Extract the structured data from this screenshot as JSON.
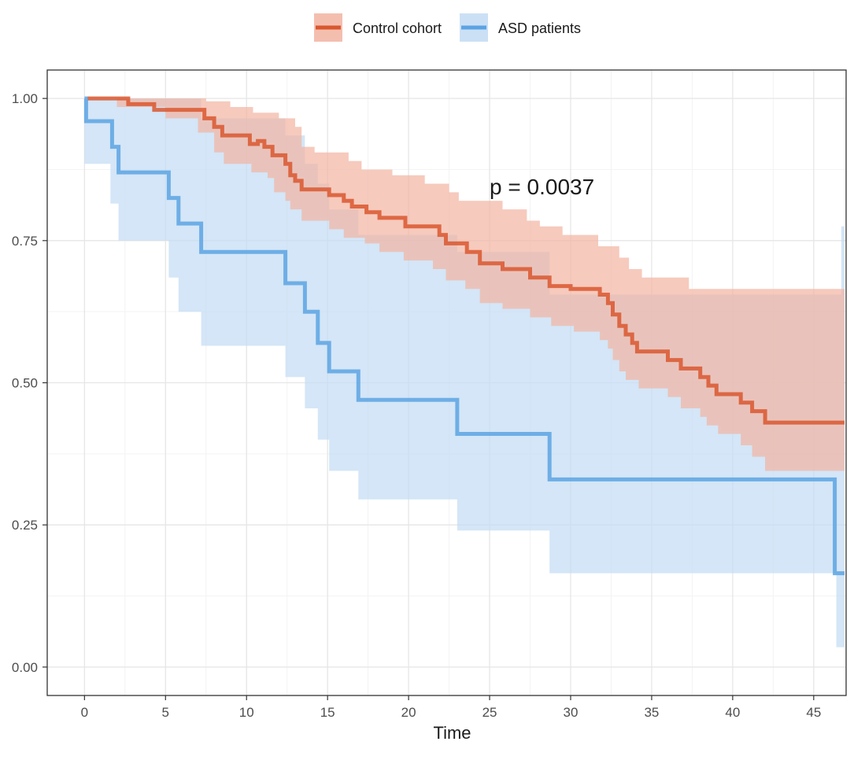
{
  "chart_data": {
    "type": "line",
    "subtype": "kaplan-meier",
    "xlabel": "Time",
    "ylabel": "",
    "xlim": [
      -2.3,
      47.0
    ],
    "ylim": [
      -0.05,
      1.05
    ],
    "x_ticks": [
      0,
      5,
      10,
      15,
      20,
      25,
      30,
      35,
      40,
      45
    ],
    "y_ticks": [
      0.0,
      0.25,
      0.5,
      0.75,
      1.0
    ],
    "y_tick_labels": [
      "0.00",
      "0.25",
      "0.50",
      "0.75",
      "1.00"
    ],
    "grid": true,
    "legend_position": "top",
    "annotation": {
      "text": "p = 0.0037",
      "x": 25,
      "y": 0.845
    },
    "series": [
      {
        "name": "Control cohort",
        "color": "#d9572f",
        "band_color": "#f2b3a1",
        "steps": [
          [
            0.2,
            1.0
          ],
          [
            2.7,
            0.99
          ],
          [
            4.3,
            0.98
          ],
          [
            7.4,
            0.965
          ],
          [
            8.0,
            0.95
          ],
          [
            8.5,
            0.935
          ],
          [
            10.2,
            0.92
          ],
          [
            10.7,
            0.925
          ],
          [
            11.1,
            0.915
          ],
          [
            11.6,
            0.9
          ],
          [
            12.4,
            0.885
          ],
          [
            12.7,
            0.865
          ],
          [
            13.0,
            0.855
          ],
          [
            13.4,
            0.84
          ],
          [
            15.1,
            0.83
          ],
          [
            16.0,
            0.82
          ],
          [
            16.5,
            0.81
          ],
          [
            17.4,
            0.8
          ],
          [
            18.2,
            0.79
          ],
          [
            19.8,
            0.775
          ],
          [
            21.9,
            0.76
          ],
          [
            22.3,
            0.745
          ],
          [
            23.6,
            0.73
          ],
          [
            24.4,
            0.71
          ],
          [
            25.8,
            0.7
          ],
          [
            27.5,
            0.685
          ],
          [
            28.7,
            0.67
          ],
          [
            30.0,
            0.665
          ],
          [
            31.8,
            0.655
          ],
          [
            32.3,
            0.64
          ],
          [
            32.6,
            0.62
          ],
          [
            33.0,
            0.6
          ],
          [
            33.4,
            0.585
          ],
          [
            33.8,
            0.57
          ],
          [
            34.1,
            0.555
          ],
          [
            36.0,
            0.54
          ],
          [
            36.8,
            0.525
          ],
          [
            38.0,
            0.51
          ],
          [
            38.5,
            0.495
          ],
          [
            39.0,
            0.48
          ],
          [
            40.5,
            0.465
          ],
          [
            41.2,
            0.45
          ],
          [
            42.0,
            0.43
          ],
          [
            46.9,
            0.43
          ]
        ],
        "upper": [
          [
            0.2,
            1.0
          ],
          [
            5.0,
            1.0
          ],
          [
            7.5,
            0.995
          ],
          [
            9.0,
            0.985
          ],
          [
            10.4,
            0.975
          ],
          [
            12.0,
            0.965
          ],
          [
            13.0,
            0.95
          ],
          [
            13.4,
            0.915
          ],
          [
            14.2,
            0.905
          ],
          [
            16.3,
            0.89
          ],
          [
            17.1,
            0.875
          ],
          [
            19.0,
            0.865
          ],
          [
            21.0,
            0.85
          ],
          [
            22.5,
            0.835
          ],
          [
            23.1,
            0.82
          ],
          [
            25.8,
            0.805
          ],
          [
            27.3,
            0.785
          ],
          [
            28.1,
            0.775
          ],
          [
            29.5,
            0.76
          ],
          [
            31.7,
            0.74
          ],
          [
            33.0,
            0.72
          ],
          [
            33.6,
            0.7
          ],
          [
            34.4,
            0.685
          ],
          [
            37.3,
            0.665
          ],
          [
            46.9,
            0.665
          ]
        ],
        "lower": [
          [
            0.2,
            1.0
          ],
          [
            2.0,
            0.985
          ],
          [
            5.0,
            0.965
          ],
          [
            7.0,
            0.94
          ],
          [
            8.0,
            0.905
          ],
          [
            8.6,
            0.885
          ],
          [
            10.3,
            0.87
          ],
          [
            11.3,
            0.86
          ],
          [
            11.7,
            0.835
          ],
          [
            12.4,
            0.82
          ],
          [
            12.7,
            0.805
          ],
          [
            13.4,
            0.785
          ],
          [
            15.1,
            0.77
          ],
          [
            16.0,
            0.755
          ],
          [
            17.3,
            0.745
          ],
          [
            18.2,
            0.73
          ],
          [
            19.7,
            0.715
          ],
          [
            21.5,
            0.7
          ],
          [
            22.3,
            0.68
          ],
          [
            23.5,
            0.665
          ],
          [
            24.4,
            0.64
          ],
          [
            25.8,
            0.63
          ],
          [
            27.5,
            0.615
          ],
          [
            28.8,
            0.6
          ],
          [
            30.2,
            0.59
          ],
          [
            31.8,
            0.575
          ],
          [
            32.3,
            0.56
          ],
          [
            32.6,
            0.54
          ],
          [
            33.0,
            0.52
          ],
          [
            33.4,
            0.505
          ],
          [
            34.2,
            0.49
          ],
          [
            36.0,
            0.475
          ],
          [
            36.8,
            0.455
          ],
          [
            38.0,
            0.44
          ],
          [
            38.4,
            0.425
          ],
          [
            39.1,
            0.41
          ],
          [
            40.5,
            0.39
          ],
          [
            41.2,
            0.37
          ],
          [
            42.0,
            0.345
          ],
          [
            46.9,
            0.32
          ]
        ]
      },
      {
        "name": "ASD patients",
        "color": "#5ca3e3",
        "band_color": "#c2dbf3",
        "steps": [
          [
            0.0,
            1.0
          ],
          [
            0.1,
            0.96
          ],
          [
            1.7,
            0.915
          ],
          [
            2.1,
            0.87
          ],
          [
            5.2,
            0.825
          ],
          [
            5.8,
            0.78
          ],
          [
            7.2,
            0.73
          ],
          [
            12.4,
            0.675
          ],
          [
            13.6,
            0.625
          ],
          [
            14.4,
            0.57
          ],
          [
            15.1,
            0.52
          ],
          [
            16.9,
            0.47
          ],
          [
            23.0,
            0.41
          ],
          [
            28.7,
            0.33
          ],
          [
            46.3,
            0.165
          ],
          [
            46.9,
            0.165
          ]
        ],
        "upper": [
          [
            0.0,
            1.0
          ],
          [
            7.2,
            0.965
          ],
          [
            12.4,
            0.935
          ],
          [
            13.6,
            0.885
          ],
          [
            14.4,
            0.85
          ],
          [
            15.1,
            0.805
          ],
          [
            16.9,
            0.76
          ],
          [
            23.0,
            0.73
          ],
          [
            28.7,
            0.655
          ],
          [
            46.3,
            0.655
          ],
          [
            46.7,
            0.775
          ],
          [
            46.9,
            0.775
          ]
        ],
        "lower": [
          [
            0.0,
            0.885
          ],
          [
            1.6,
            0.815
          ],
          [
            2.1,
            0.75
          ],
          [
            5.2,
            0.685
          ],
          [
            5.8,
            0.625
          ],
          [
            7.2,
            0.565
          ],
          [
            12.4,
            0.51
          ],
          [
            13.6,
            0.455
          ],
          [
            14.4,
            0.4
          ],
          [
            15.1,
            0.345
          ],
          [
            16.9,
            0.295
          ],
          [
            23.0,
            0.24
          ],
          [
            28.7,
            0.165
          ],
          [
            46.3,
            0.165
          ],
          [
            46.4,
            0.035
          ],
          [
            46.9,
            0.035
          ]
        ]
      }
    ]
  }
}
